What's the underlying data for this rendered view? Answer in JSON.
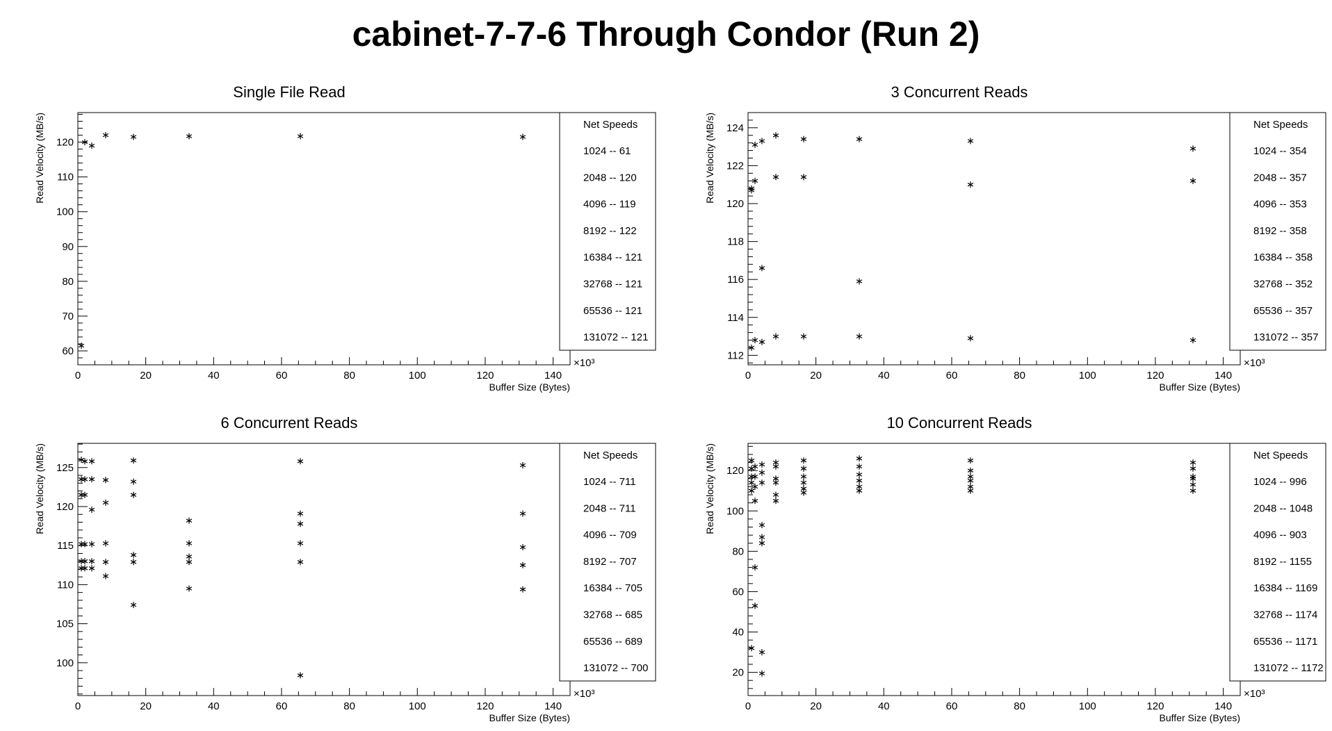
{
  "title": "cabinet-7-7-6 Through Condor (Run 2)",
  "chart_data": [
    {
      "type": "scatter",
      "title": "Single File Read",
      "xlabel": "Buffer Size (Bytes)",
      "ylabel": "Read Velocity (MB/s)",
      "x_multiplier": "×10³",
      "xlim": [
        0,
        145
      ],
      "ylim": [
        56,
        128.5
      ],
      "xticks": [
        0,
        20,
        40,
        60,
        80,
        100,
        120,
        140
      ],
      "yticks": [
        60,
        70,
        80,
        90,
        100,
        110,
        120
      ],
      "grid": false,
      "marker": "asterisk",
      "points": [
        [
          1.024,
          61.5
        ],
        [
          2.048,
          120
        ],
        [
          4.096,
          119
        ],
        [
          8.192,
          122
        ],
        [
          16.384,
          121.5
        ],
        [
          32.768,
          121.7
        ],
        [
          65.536,
          121.7
        ],
        [
          131.072,
          121.5
        ]
      ],
      "legend": {
        "placement": "right",
        "title": "Net Speeds",
        "entries": [
          "1024 -- 61",
          "2048 -- 120",
          "4096 -- 119",
          "8192 -- 122",
          "16384 -- 121",
          "32768 -- 121",
          "65536 -- 121",
          "131072 -- 121"
        ]
      }
    },
    {
      "type": "scatter",
      "title": "3 Concurrent Reads",
      "xlabel": "Buffer Size (Bytes)",
      "ylabel": "Read Velocity (MB/s)",
      "x_multiplier": "×10³",
      "xlim": [
        0,
        145
      ],
      "ylim": [
        111.5,
        124.8
      ],
      "xticks": [
        0,
        20,
        40,
        60,
        80,
        100,
        120,
        140
      ],
      "yticks": [
        112,
        114,
        116,
        118,
        120,
        122,
        124
      ],
      "grid": false,
      "marker": "asterisk",
      "points": [
        [
          1.024,
          120.8
        ],
        [
          1.024,
          112.4
        ],
        [
          1.024,
          120.7
        ],
        [
          2.048,
          123.1
        ],
        [
          2.048,
          121.2
        ],
        [
          2.048,
          112.8
        ],
        [
          4.096,
          123.3
        ],
        [
          4.096,
          116.6
        ],
        [
          4.096,
          112.7
        ],
        [
          8.192,
          123.6
        ],
        [
          8.192,
          121.4
        ],
        [
          8.192,
          113.0
        ],
        [
          16.384,
          123.4
        ],
        [
          16.384,
          121.4
        ],
        [
          16.384,
          113.0
        ],
        [
          32.768,
          123.4
        ],
        [
          32.768,
          115.9
        ],
        [
          32.768,
          113.0
        ],
        [
          65.536,
          123.3
        ],
        [
          65.536,
          121.0
        ],
        [
          65.536,
          112.9
        ],
        [
          131.072,
          122.9
        ],
        [
          131.072,
          121.2
        ],
        [
          131.072,
          112.8
        ]
      ],
      "legend": {
        "placement": "right",
        "title": "Net Speeds",
        "entries": [
          "1024 -- 354",
          "2048 -- 357",
          "4096 -- 353",
          "8192 -- 358",
          "16384 -- 358",
          "32768 -- 352",
          "65536 -- 357",
          "131072 -- 357"
        ]
      }
    },
    {
      "type": "scatter",
      "title": "6 Concurrent Reads",
      "xlabel": "Buffer Size (Bytes)",
      "ylabel": "Read Velocity (MB/s)",
      "x_multiplier": "×10³",
      "xlim": [
        0,
        145
      ],
      "ylim": [
        95.8,
        128.1
      ],
      "xticks": [
        0,
        20,
        40,
        60,
        80,
        100,
        120,
        140
      ],
      "yticks": [
        100,
        105,
        110,
        115,
        120,
        125
      ],
      "grid": false,
      "marker": "asterisk",
      "points": [
        [
          1.024,
          126.0
        ],
        [
          1.024,
          123.5
        ],
        [
          1.024,
          121.5
        ],
        [
          1.024,
          115.2
        ],
        [
          1.024,
          113.0
        ],
        [
          1.024,
          112.1
        ],
        [
          2.048,
          125.8
        ],
        [
          2.048,
          123.5
        ],
        [
          2.048,
          121.5
        ],
        [
          2.048,
          115.2
        ],
        [
          2.048,
          113.0
        ],
        [
          2.048,
          112.1
        ],
        [
          4.096,
          125.8
        ],
        [
          4.096,
          123.5
        ],
        [
          4.096,
          119.6
        ],
        [
          4.096,
          115.2
        ],
        [
          4.096,
          113.0
        ],
        [
          4.096,
          112.1
        ],
        [
          8.192,
          123.4
        ],
        [
          8.192,
          120.5
        ],
        [
          8.192,
          115.3
        ],
        [
          8.192,
          112.9
        ],
        [
          8.192,
          111.1
        ],
        [
          16.384,
          125.9
        ],
        [
          16.384,
          123.2
        ],
        [
          16.384,
          121.5
        ],
        [
          16.384,
          113.8
        ],
        [
          16.384,
          112.9
        ],
        [
          16.384,
          107.4
        ],
        [
          32.768,
          118.2
        ],
        [
          32.768,
          115.3
        ],
        [
          32.768,
          113.6
        ],
        [
          32.768,
          112.9
        ],
        [
          32.768,
          109.5
        ],
        [
          65.536,
          125.8
        ],
        [
          65.536,
          119.1
        ],
        [
          65.536,
          117.8
        ],
        [
          65.536,
          115.3
        ],
        [
          65.536,
          112.9
        ],
        [
          65.536,
          98.4
        ],
        [
          131.072,
          125.3
        ],
        [
          131.072,
          119.1
        ],
        [
          131.072,
          114.8
        ],
        [
          131.072,
          112.5
        ],
        [
          131.072,
          109.4
        ]
      ],
      "legend": {
        "placement": "right",
        "title": "Net Speeds",
        "entries": [
          "1024 -- 711",
          "2048 -- 711",
          "4096 -- 709",
          "8192 -- 707",
          "16384 -- 705",
          "32768 -- 685",
          "65536 -- 689",
          "131072 -- 700"
        ]
      }
    },
    {
      "type": "scatter",
      "title": "10 Concurrent Reads",
      "xlabel": "Buffer Size (Bytes)",
      "ylabel": "Read Velocity (MB/s)",
      "x_multiplier": "×10³",
      "xlim": [
        0,
        145
      ],
      "ylim": [
        8.5,
        133.5
      ],
      "xticks": [
        0,
        20,
        40,
        60,
        80,
        100,
        120,
        140
      ],
      "yticks": [
        20,
        40,
        60,
        80,
        100,
        120
      ],
      "grid": false,
      "marker": "asterisk",
      "points": [
        [
          1.024,
          125
        ],
        [
          1.024,
          121
        ],
        [
          1.024,
          117
        ],
        [
          1.024,
          114
        ],
        [
          1.024,
          110
        ],
        [
          1.024,
          32
        ],
        [
          2.048,
          122
        ],
        [
          2.048,
          117
        ],
        [
          2.048,
          112
        ],
        [
          2.048,
          105
        ],
        [
          2.048,
          72
        ],
        [
          2.048,
          53
        ],
        [
          4.096,
          123
        ],
        [
          4.096,
          119
        ],
        [
          4.096,
          114
        ],
        [
          4.096,
          93
        ],
        [
          4.096,
          87
        ],
        [
          4.096,
          84
        ],
        [
          4.096,
          30
        ],
        [
          4.096,
          19.5
        ],
        [
          8.192,
          124
        ],
        [
          8.192,
          122
        ],
        [
          8.192,
          116
        ],
        [
          8.192,
          114
        ],
        [
          8.192,
          108
        ],
        [
          8.192,
          105
        ],
        [
          16.384,
          125
        ],
        [
          16.384,
          121
        ],
        [
          16.384,
          117
        ],
        [
          16.384,
          114
        ],
        [
          16.384,
          111
        ],
        [
          16.384,
          109
        ],
        [
          32.768,
          126
        ],
        [
          32.768,
          122
        ],
        [
          32.768,
          118
        ],
        [
          32.768,
          115
        ],
        [
          32.768,
          112
        ],
        [
          32.768,
          110
        ],
        [
          65.536,
          125
        ],
        [
          65.536,
          120
        ],
        [
          65.536,
          117
        ],
        [
          65.536,
          115
        ],
        [
          65.536,
          112
        ],
        [
          65.536,
          110
        ],
        [
          131.072,
          124
        ],
        [
          131.072,
          121
        ],
        [
          131.072,
          117
        ],
        [
          131.072,
          116
        ],
        [
          131.072,
          113
        ],
        [
          131.072,
          110
        ]
      ],
      "legend": {
        "placement": "right",
        "title": "Net Speeds",
        "entries": [
          "1024 -- 996",
          "2048 -- 1048",
          "4096 -- 903",
          "8192 -- 1155",
          "16384 -- 1169",
          "32768 -- 1174",
          "65536 -- 1171",
          "131072 -- 1172"
        ]
      }
    }
  ]
}
